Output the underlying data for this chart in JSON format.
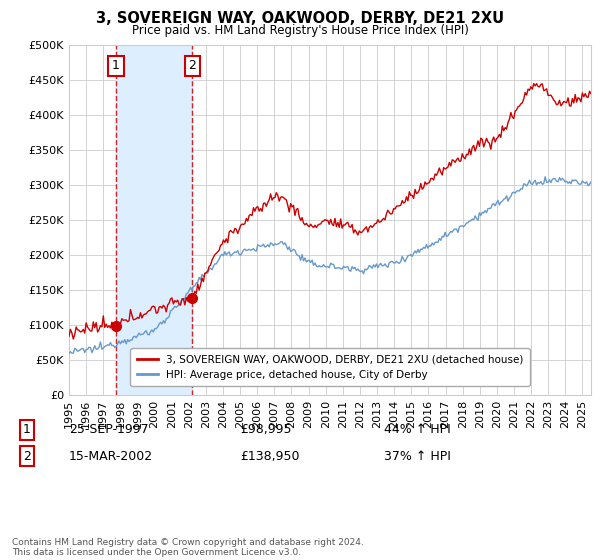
{
  "title": "3, SOVEREIGN WAY, OAKWOOD, DERBY, DE21 2XU",
  "subtitle": "Price paid vs. HM Land Registry's House Price Index (HPI)",
  "legend_line1": "3, SOVEREIGN WAY, OAKWOOD, DERBY, DE21 2XU (detached house)",
  "legend_line2": "HPI: Average price, detached house, City of Derby",
  "footer": "Contains HM Land Registry data © Crown copyright and database right 2024.\nThis data is licensed under the Open Government Licence v3.0.",
  "sale1_date": "25-SEP-1997",
  "sale1_price": 98995,
  "sale1_label": "1",
  "sale1_hpi": "44% ↑ HPI",
  "sale2_date": "15-MAR-2002",
  "sale2_price": 138950,
  "sale2_label": "2",
  "sale2_hpi": "37% ↑ HPI",
  "sale1_year": 1997.75,
  "sale2_year": 2002.21,
  "ylim_min": 0,
  "ylim_max": 500000,
  "xlim_min": 1995.0,
  "xlim_max": 2025.5,
  "red_color": "#cc0000",
  "blue_color": "#6699cc",
  "shade_color": "#ddeeff",
  "grid_color": "#cccccc",
  "background_color": "#ffffff",
  "marker_box_color": "#cc0000"
}
